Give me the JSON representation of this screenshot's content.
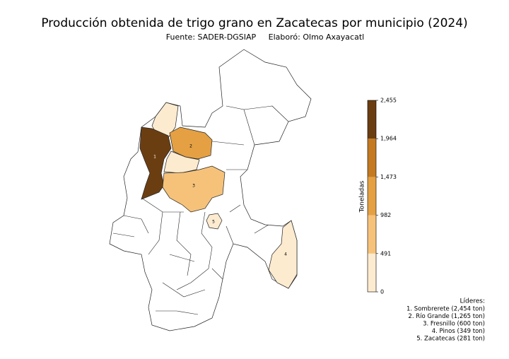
{
  "title": "Producción obtenida de trigo grano en Zacatecas por municipio (2024)",
  "subtitle": "Fuente: SADER-DGSIAP     Elaboró: Olmo Axayacatl",
  "map": {
    "labels": [
      "1",
      "2",
      "3",
      "4",
      "5"
    ]
  },
  "colorbar": {
    "label": "Toneladas",
    "lim": [
      0,
      2455
    ],
    "ticks": [
      0,
      491,
      982,
      {
        "value": 1473,
        "label": "1,473"
      },
      {
        "value": 1964,
        "label": "1,964"
      },
      {
        "value": 2455,
        "label": "2,455"
      }
    ],
    "colors": [
      "#fdebd0",
      "#f6c27a",
      "#e4a043",
      "#c47a22",
      "#6b3e12"
    ]
  },
  "leaders": {
    "title": "Líderes:",
    "items": [
      "1. Sombrerete (2,454 ton)",
      "2. Río Grande (1,265 ton)",
      "3. Fresnillo (600 ton)",
      "4. Pinos (349 ton)",
      "5. Zacatecas (281 ton)"
    ]
  }
}
